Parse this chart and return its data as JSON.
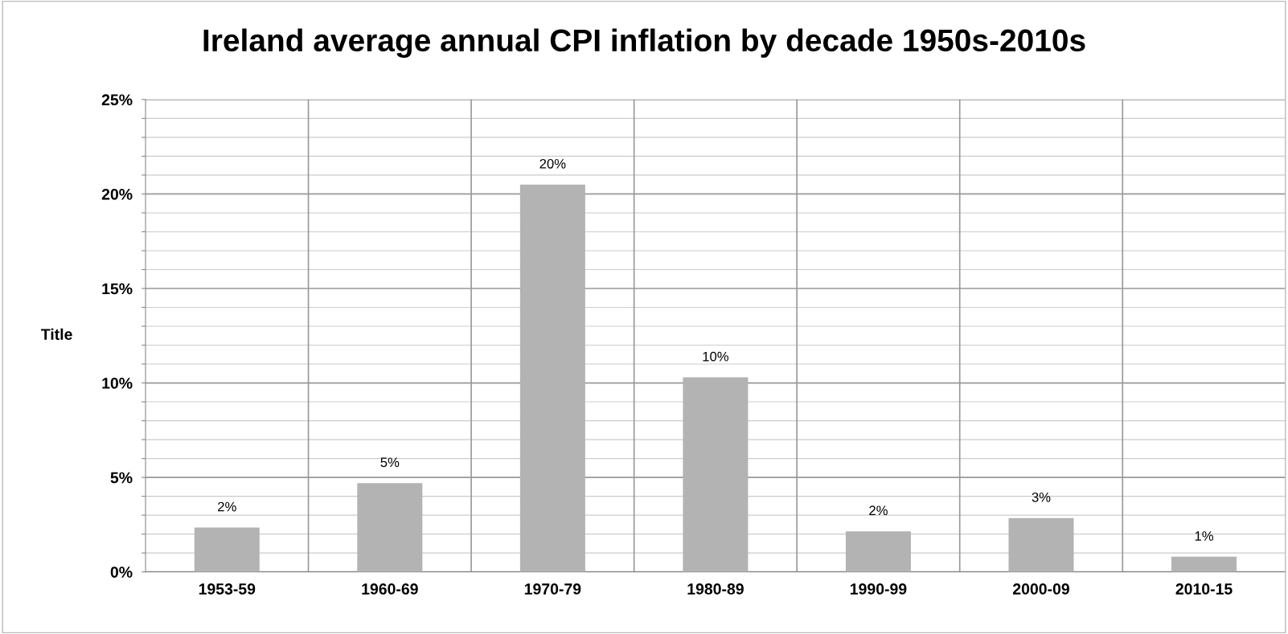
{
  "chart_data": {
    "type": "bar",
    "title": "Ireland average annual CPI inflation by decade 1950s-2010s",
    "ylabel": "Title",
    "categories": [
      "1953-59",
      "1960-69",
      "1970-79",
      "1980-89",
      "1990-99",
      "2000-09",
      "2010-15"
    ],
    "values": [
      2.35,
      4.7,
      20.5,
      10.3,
      2.15,
      2.85,
      0.8
    ],
    "value_labels": [
      "2%",
      "5%",
      "20%",
      "10%",
      "2%",
      "3%",
      "1%"
    ],
    "color": "#b3b3b3",
    "ylim": [
      0,
      25
    ],
    "yticks": [
      {
        "value": 0,
        "label": "0%"
      },
      {
        "value": 1,
        "label": null
      },
      {
        "value": 2,
        "label": null
      },
      {
        "value": 3,
        "label": null
      },
      {
        "value": 4,
        "label": null
      },
      {
        "value": 5,
        "label": "5%"
      },
      {
        "value": 6,
        "label": null
      },
      {
        "value": 7,
        "label": null
      },
      {
        "value": 8,
        "label": null
      },
      {
        "value": 9,
        "label": null
      },
      {
        "value": 10,
        "label": "10%"
      },
      {
        "value": 11,
        "label": null
      },
      {
        "value": 12,
        "label": null
      },
      {
        "value": 13,
        "label": null
      },
      {
        "value": 14,
        "label": null
      },
      {
        "value": 15,
        "label": "15%"
      },
      {
        "value": 16,
        "label": null
      },
      {
        "value": 17,
        "label": null
      },
      {
        "value": 18,
        "label": null
      },
      {
        "value": 19,
        "label": null
      },
      {
        "value": 20,
        "label": "20%"
      },
      {
        "value": 21,
        "label": null
      },
      {
        "value": 22,
        "label": null
      },
      {
        "value": 23,
        "label": null
      },
      {
        "value": 24,
        "label": null
      },
      {
        "value": 25,
        "label": "25%"
      }
    ],
    "grid": true
  }
}
